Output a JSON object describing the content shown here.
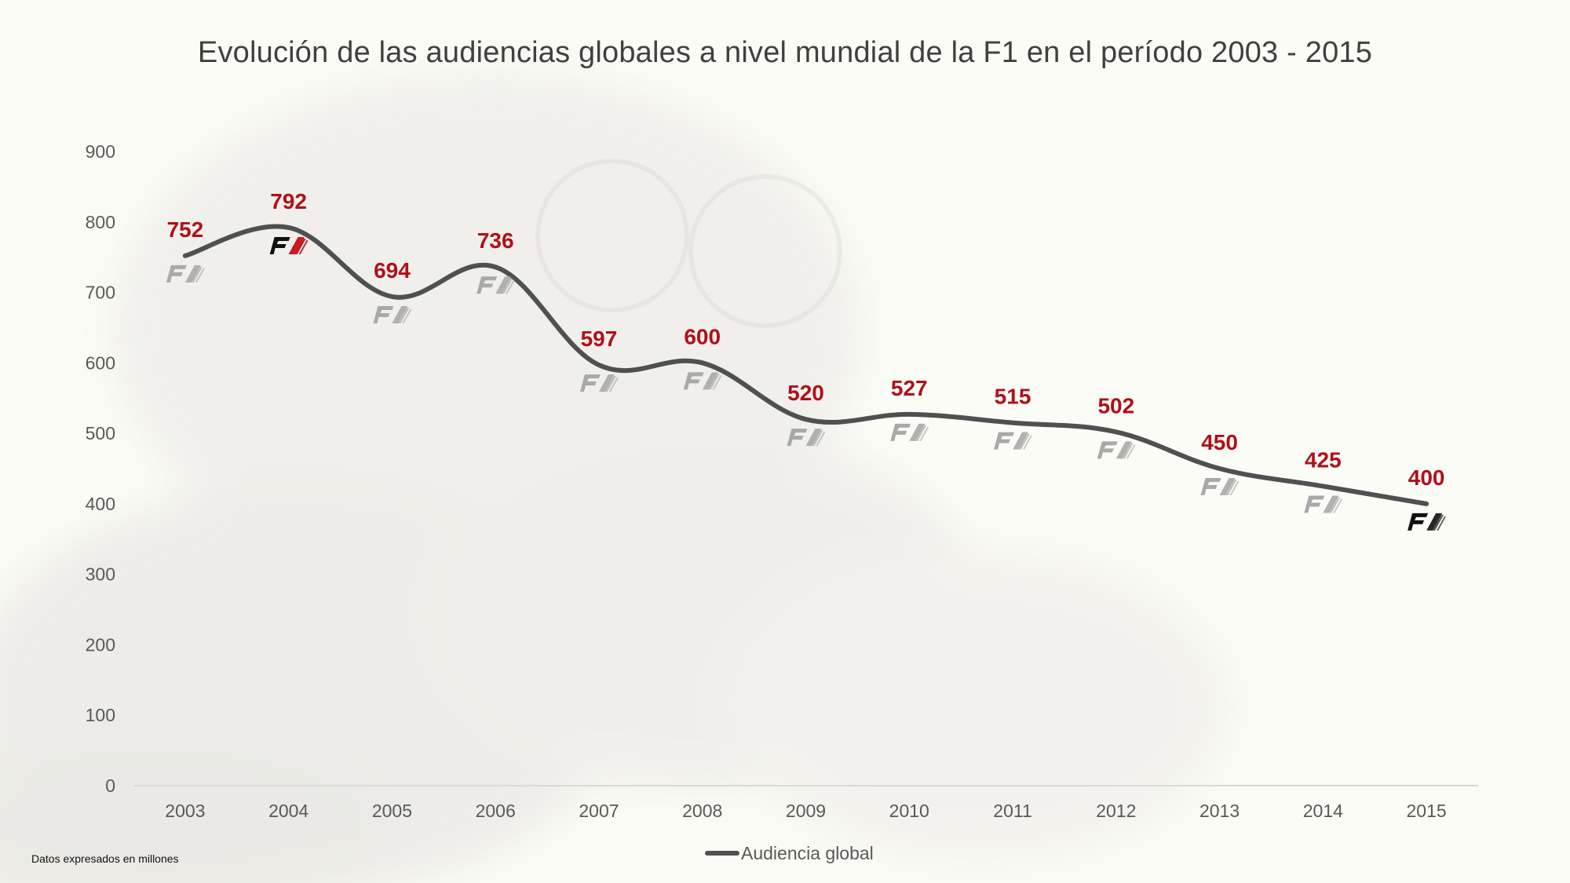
{
  "chart_data": {
    "type": "line",
    "title": "Evolución de las audiencias globales a nivel mundial de la F1  en el período 2003 - 2015",
    "categories": [
      "2003",
      "2004",
      "2005",
      "2006",
      "2007",
      "2008",
      "2009",
      "2010",
      "2011",
      "2012",
      "2013",
      "2014",
      "2015"
    ],
    "series": [
      {
        "name": "Audiencia global",
        "color": "#505050",
        "values": [
          752,
          792,
          694,
          736,
          597,
          600,
          520,
          527,
          515,
          502,
          450,
          425,
          400
        ]
      }
    ],
    "ylim": [
      0,
      900
    ],
    "yticks": [
      0,
      100,
      200,
      300,
      400,
      500,
      600,
      700,
      800,
      900
    ],
    "smooth": true,
    "grid": false,
    "legend_position": "bottom",
    "data_label_color": "#b01018",
    "marker_icon": "f1-logo-icon"
  },
  "footnote": "Datos expresados en millones"
}
